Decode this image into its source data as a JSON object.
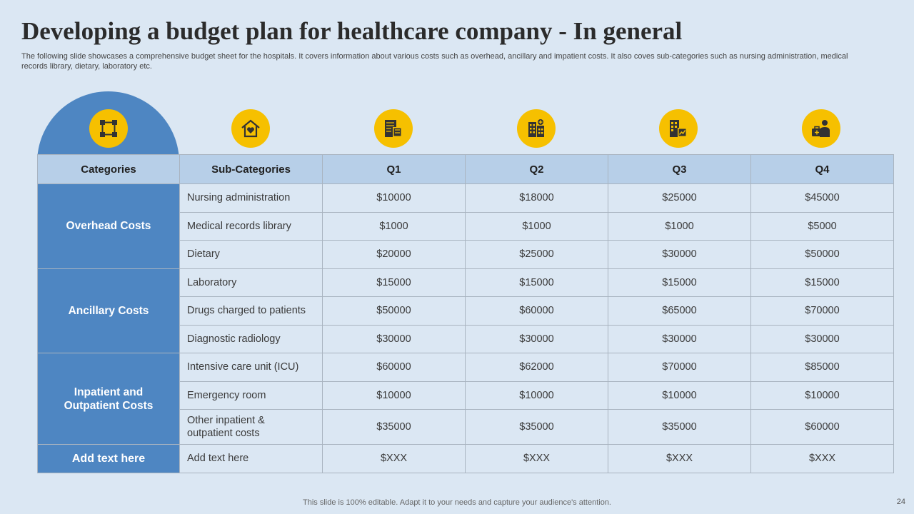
{
  "title": "Developing a budget plan for healthcare company - In general",
  "subtitle": "The following slide showcases a comprehensive budget sheet for the hospitals. It covers information about various costs such as overhead, ancillary and impatient costs. It also coves sub-categories such as nursing administration, medical records library, dietary, laboratory etc.",
  "icons": [
    "network-icon",
    "home-heart-icon",
    "budget-calculator-icon",
    "hospital-building-icon",
    "finance-building-icon",
    "medical-briefcase-icon"
  ],
  "accent_color": "#f6c000",
  "category_color": "#4e86c2",
  "table": {
    "headers": [
      "Categories",
      "Sub-Categories",
      "Q1",
      "Q2",
      "Q3",
      "Q4"
    ],
    "groups": [
      {
        "category": "Overhead Costs",
        "rows": [
          {
            "sub": "Nursing administration",
            "q": [
              "$10000",
              "$18000",
              "$25000",
              "$45000"
            ]
          },
          {
            "sub": "Medical records library",
            "q": [
              "$1000",
              "$1000",
              "$1000",
              "$5000"
            ]
          },
          {
            "sub": "Dietary",
            "q": [
              "$20000",
              "$25000",
              "$30000",
              "$50000"
            ]
          }
        ]
      },
      {
        "category": "Ancillary Costs",
        "rows": [
          {
            "sub": "Laboratory",
            "q": [
              "$15000",
              "$15000",
              "$15000",
              "$15000"
            ]
          },
          {
            "sub": "Drugs charged to patients",
            "q": [
              "$50000",
              "$60000",
              "$65000",
              "$70000"
            ]
          },
          {
            "sub": "Diagnostic radiology",
            "q": [
              "$30000",
              "$30000",
              "$30000",
              "$30000"
            ]
          }
        ]
      },
      {
        "category_line1": "Inpatient and",
        "category_line2": "Outpatient Costs",
        "rows": [
          {
            "sub": "Intensive care unit (ICU)",
            "q": [
              "$60000",
              "$62000",
              "$70000",
              "$85000"
            ]
          },
          {
            "sub": "Emergency room",
            "q": [
              "$10000",
              "$10000",
              "$10000",
              "$10000"
            ]
          },
          {
            "sub_line1": "Other inpatient &",
            "sub_line2": "outpatient costs",
            "q": [
              "$35000",
              "$35000",
              "$35000",
              "$60000"
            ]
          }
        ]
      },
      {
        "category": "Add text here",
        "rows": [
          {
            "sub": "Add text here",
            "q": [
              "$XXX",
              "$XXX",
              "$XXX",
              "$XXX"
            ]
          }
        ]
      }
    ]
  },
  "footer": "This slide is 100% editable. Adapt it to your needs and capture your audience's attention.",
  "page_number": "24"
}
